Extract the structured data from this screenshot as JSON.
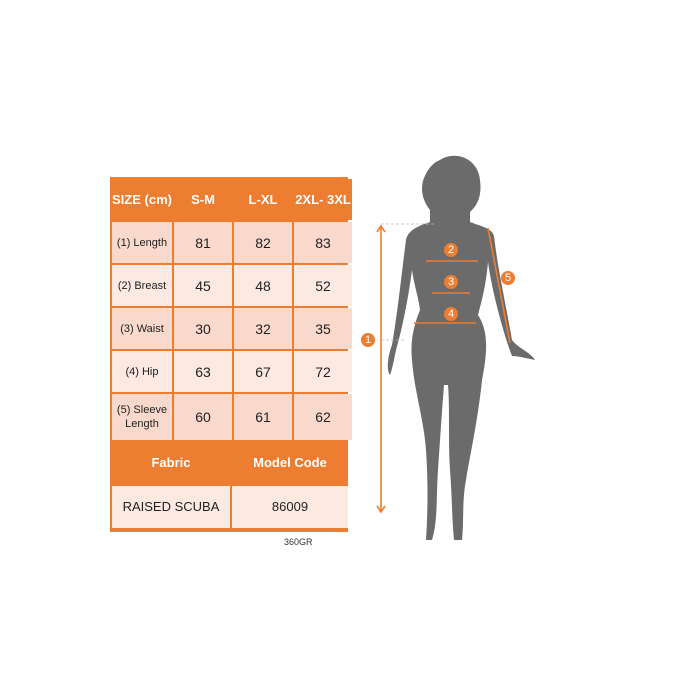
{
  "table": {
    "headers": [
      "SIZE (cm)",
      "S-M",
      "L-XL",
      "2XL- 3XL"
    ],
    "rows": [
      {
        "label": "(1) Length",
        "values": [
          "81",
          "82",
          "83"
        ]
      },
      {
        "label": "(2) Breast",
        "values": [
          "45",
          "48",
          "52"
        ]
      },
      {
        "label": "(3) Waist",
        "values": [
          "30",
          "32",
          "35"
        ]
      },
      {
        "label": "(4) Hip",
        "values": [
          "63",
          "67",
          "72"
        ]
      },
      {
        "label": "(5) Sleeve Length",
        "values": [
          "60",
          "61",
          "62"
        ]
      }
    ],
    "fabric_header": "Fabric",
    "model_header": "Model Code",
    "fabric": "RAISED SCUBA",
    "model_code": "86009"
  },
  "note": "360GR",
  "figure": {
    "markers": [
      "1",
      "2",
      "3",
      "4",
      "5"
    ],
    "accent": "#ed7d31",
    "silhouette": "#6b6b6b"
  }
}
